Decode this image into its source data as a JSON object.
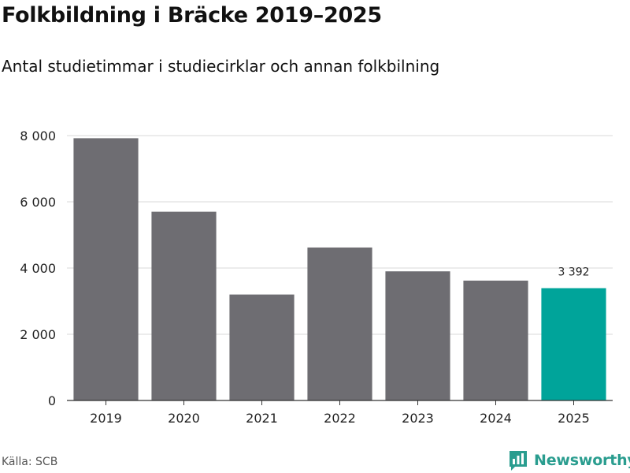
{
  "colors": {
    "bar": "#6e6d72",
    "highlight": "#00a49a",
    "grid": "#d8d8d8",
    "axis": "#333333",
    "brand": "#2a9d8f"
  },
  "source": "Källa: SCB",
  "brand": {
    "name": "Newsworthy",
    "icon": "newsworthy-logo-icon"
  },
  "chart_data": {
    "type": "bar",
    "title": "Folkbildning i Bräcke 2019–2025",
    "subtitle": "Antal studietimmar i studiecirklar och annan folkbilning",
    "xlabel": "",
    "ylabel": "",
    "categories": [
      "2019",
      "2020",
      "2021",
      "2022",
      "2023",
      "2024",
      "2025"
    ],
    "values": [
      7920,
      5700,
      3200,
      4620,
      3900,
      3620,
      3392
    ],
    "highlight_index": 6,
    "highlight_label": "3 392",
    "ylim": [
      0,
      8000
    ],
    "yticks": [
      0,
      2000,
      4000,
      6000,
      8000
    ],
    "ytick_labels": [
      "0",
      "2 000",
      "4 000",
      "6 000",
      "8 000"
    ],
    "grid": true
  }
}
